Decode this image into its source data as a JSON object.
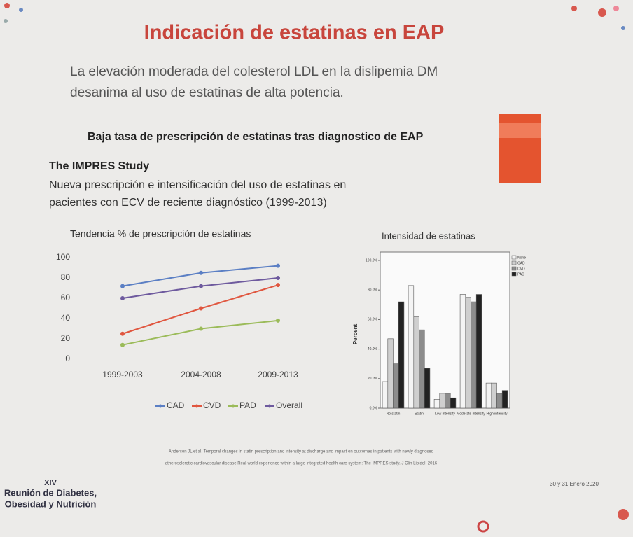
{
  "slide": {
    "title": "Indicación de estatinas en EAP",
    "intro": [
      "La elevación moderada del colesterol LDL en la dislipemia DM",
      "desanima al uso de estatinas de alta potencia."
    ],
    "subtitle": "Baja tasa de prescripción de estatinas tras diagnostico de EAP",
    "study": "The IMPRES Study",
    "study_description": [
      "Nueva prescripción e intensificación del uso de estatinas en",
      "pacientes con ECV de reciente diagnóstico  (1999-2013)"
    ],
    "reference": [
      "Anderson JL et al. Temporal changes in statin prescription and intensity at discharge and impact on outcomes in patients with newly diagnosed",
      "atherosclerotic cardiovascular disease Real-world experience within a large integrated health care system: The IMPRES study. J Clin Lipidol. 2016"
    ],
    "event": [
      "XIV",
      "Reunión de Diabetes,",
      "Obesidad y Nutrición"
    ],
    "dates": "30 y 31 Enero 2020"
  },
  "chart_data": [
    {
      "type": "line",
      "title": "Tendencia % de prescripción de estatinas",
      "categories": [
        "1999-2003",
        "2004-2008",
        "2009-2013"
      ],
      "series": [
        {
          "name": "CAD",
          "color": "#5b7fc4",
          "values": [
            72,
            85,
            92
          ]
        },
        {
          "name": "CVD",
          "color": "#e0563f",
          "values": [
            25,
            50,
            73
          ]
        },
        {
          "name": "PAD",
          "color": "#9bbb59",
          "values": [
            14,
            30,
            38
          ]
        },
        {
          "name": "Overall",
          "color": "#6e5a9e",
          "values": [
            60,
            72,
            80
          ]
        }
      ],
      "ylim": [
        0,
        100
      ],
      "yticks": [
        0,
        20,
        40,
        60,
        80,
        100
      ],
      "grid": false,
      "legend": "bottom"
    },
    {
      "type": "bar",
      "title": "Intensidad de estatinas",
      "y_label": "Percent",
      "categories": [
        "No statin",
        "Statin",
        "Low intensity",
        "Moderate intensity",
        "High intensity"
      ],
      "series": [
        {
          "name": "None",
          "color": "#f4f4f4",
          "values": [
            18,
            83,
            6,
            77,
            17
          ]
        },
        {
          "name": "CAD",
          "color": "#cfcfcf",
          "values": [
            47,
            62,
            10,
            75,
            17
          ]
        },
        {
          "name": "CVD",
          "color": "#8c8c8c",
          "values": [
            30,
            53,
            10,
            72,
            10
          ]
        },
        {
          "name": "PAD",
          "color": "#222222",
          "values": [
            72,
            27,
            7,
            77,
            12
          ]
        }
      ],
      "ylim": [
        0,
        100
      ],
      "yticks": [
        {
          "value": 0,
          "label": "0.0%"
        },
        {
          "value": 20,
          "label": "20.0%"
        },
        {
          "value": 40,
          "label": "40.0%"
        },
        {
          "value": 60,
          "label": "60.0%"
        },
        {
          "value": 80,
          "label": "80.0%"
        },
        {
          "value": 100,
          "label": "100.0%"
        }
      ],
      "legend": "top-right"
    }
  ]
}
